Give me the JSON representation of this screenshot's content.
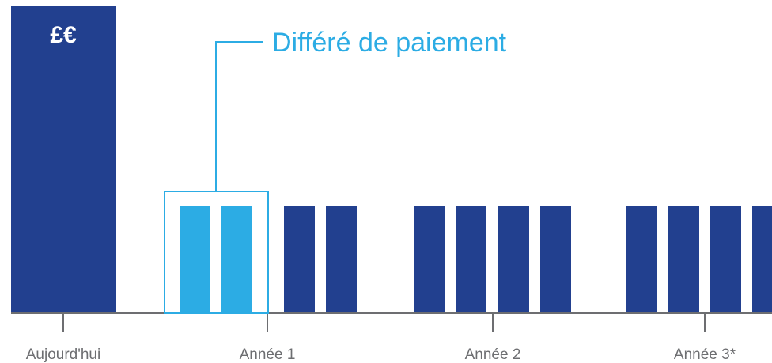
{
  "colors": {
    "bar_dark": "#22408f",
    "bar_light": "#2cace4",
    "axis": "#6d6e71",
    "annotation": "#2cace4",
    "currency_text": "#ffffff"
  },
  "chart_data": {
    "type": "bar",
    "x_ticks": [
      "Aujourd'hui",
      "Année 1",
      "Année 2",
      "Année 3*"
    ],
    "currency_label": "£€",
    "annotation": "Différé de paiement",
    "bars": [
      {
        "period": "Aujourd'hui",
        "value": 100,
        "style": "dark"
      },
      {
        "period": "Année 1",
        "value": 35,
        "style": "light"
      },
      {
        "period": "Année 1",
        "value": 35,
        "style": "light"
      },
      {
        "period": "Année 1",
        "value": 35,
        "style": "dark"
      },
      {
        "period": "Année 1",
        "value": 35,
        "style": "dark"
      },
      {
        "period": "Année 2",
        "value": 35,
        "style": "dark"
      },
      {
        "period": "Année 2",
        "value": 35,
        "style": "dark"
      },
      {
        "period": "Année 2",
        "value": 35,
        "style": "dark"
      },
      {
        "period": "Année 2",
        "value": 35,
        "style": "dark"
      },
      {
        "period": "Année 3*",
        "value": 35,
        "style": "dark"
      },
      {
        "period": "Année 3*",
        "value": 35,
        "style": "dark"
      },
      {
        "period": "Année 3*",
        "value": 35,
        "style": "dark"
      },
      {
        "period": "Année 3*",
        "value": 35,
        "style": "dark"
      }
    ],
    "ylim": [
      0,
      100
    ],
    "grid": false,
    "legend": "none"
  }
}
